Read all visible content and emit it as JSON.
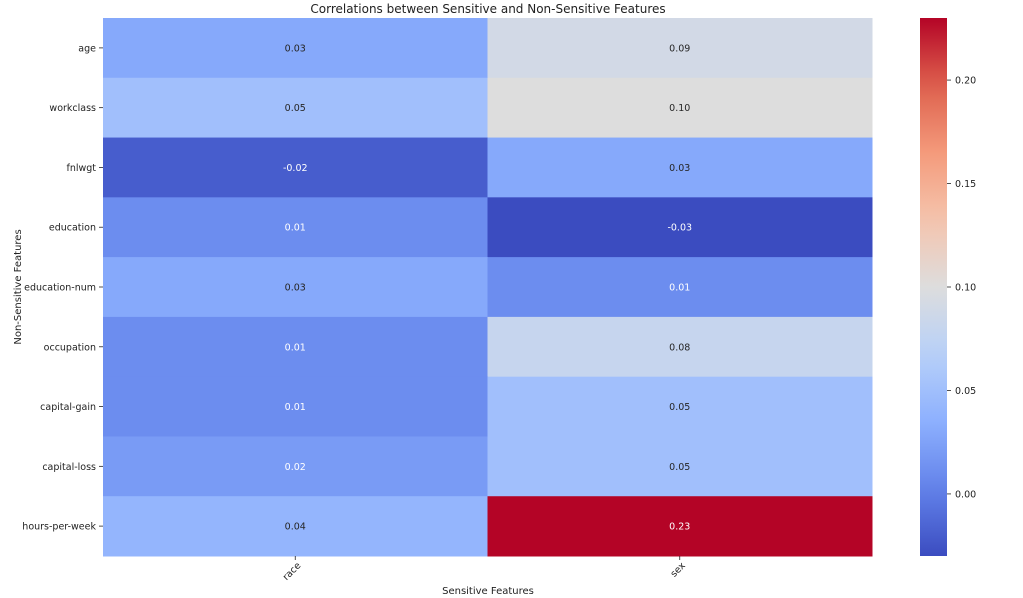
{
  "chart_data": {
    "type": "heatmap",
    "title": "Correlations between Sensitive and Non-Sensitive Features",
    "xlabel": "Sensitive Features",
    "ylabel": "Non-Sensitive Features",
    "x_categories": [
      "race",
      "sex"
    ],
    "y_categories": [
      "age",
      "workclass",
      "fnlwgt",
      "education",
      "education-num",
      "occupation",
      "capital-gain",
      "capital-loss",
      "hours-per-week"
    ],
    "values": [
      [
        0.03,
        0.09
      ],
      [
        0.05,
        0.1
      ],
      [
        -0.02,
        0.03
      ],
      [
        0.01,
        -0.03
      ],
      [
        0.03,
        0.01
      ],
      [
        0.01,
        0.08
      ],
      [
        0.01,
        0.05
      ],
      [
        0.02,
        0.05
      ],
      [
        0.04,
        0.23
      ]
    ],
    "value_labels": [
      [
        "0.03",
        "0.09"
      ],
      [
        "0.05",
        "0.10"
      ],
      [
        "-0.02",
        "0.03"
      ],
      [
        "0.01",
        "-0.03"
      ],
      [
        "0.03",
        "0.01"
      ],
      [
        "0.01",
        "0.08"
      ],
      [
        "0.01",
        "0.05"
      ],
      [
        "0.02",
        "0.05"
      ],
      [
        "0.04",
        "0.23"
      ]
    ],
    "colormap": "coolwarm",
    "vmin": -0.03,
    "vmax": 0.23,
    "colorbar_ticks": [
      0.0,
      0.05,
      0.1,
      0.15,
      0.2
    ],
    "colorbar_tick_labels": [
      "0.00",
      "0.05",
      "0.10",
      "0.15",
      "0.20"
    ],
    "grid": false
  }
}
